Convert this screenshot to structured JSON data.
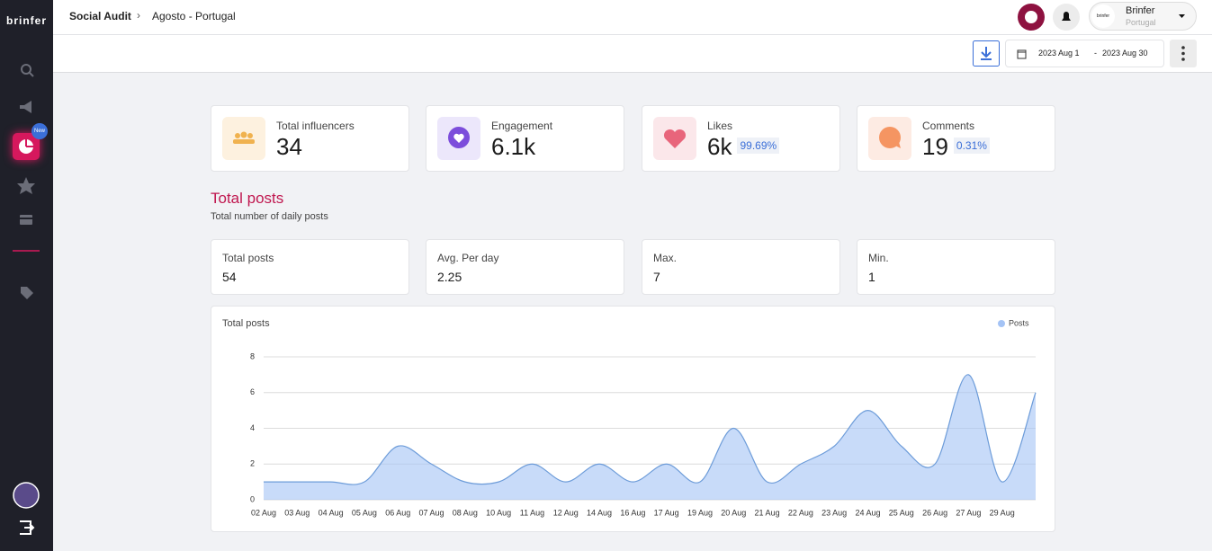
{
  "sidebar": {
    "logo": "brinfer",
    "badge": "New"
  },
  "header": {
    "breadcrumb": [
      "Social Audit",
      "Agosto - Portugal"
    ],
    "user_logo": "brinfer",
    "user_name": "Brinfer",
    "user_location": "Portugal",
    "date_from": "2023 Aug 1",
    "date_separator": "-",
    "date_to": "2023 Aug 30"
  },
  "kpis": [
    {
      "label": "Total influencers",
      "value": "34"
    },
    {
      "label": "Engagement",
      "value": "6.1k"
    },
    {
      "label": "Likes",
      "value": "6k",
      "share": "99.69%"
    },
    {
      "label": "Comments",
      "value": "19",
      "share": "0.31%"
    }
  ],
  "section": {
    "title": "Total posts",
    "subtitle": "Total number of daily posts"
  },
  "stats": [
    {
      "label": "Total posts",
      "value": "54"
    },
    {
      "label": "Avg. Per day",
      "value": "2.25"
    },
    {
      "label": "Max.",
      "value": "7"
    },
    {
      "label": "Min.",
      "value": "1"
    }
  ],
  "chart_data": {
    "type": "area",
    "title": "Total posts",
    "categories": [
      "02 Aug",
      "03 Aug",
      "04 Aug",
      "05 Aug",
      "06 Aug",
      "07 Aug",
      "08 Aug",
      "10 Aug",
      "11 Aug",
      "12 Aug",
      "14 Aug",
      "16 Aug",
      "17 Aug",
      "19 Aug",
      "20 Aug",
      "21 Aug",
      "22 Aug",
      "23 Aug",
      "24 Aug",
      "25 Aug",
      "26 Aug",
      "27 Aug",
      "29 Aug",
      null
    ],
    "series": [
      {
        "name": "Posts",
        "color": "#a4c3f5",
        "line_color": "#6d9cd9",
        "values": [
          1,
          1,
          1,
          1,
          3,
          2,
          1,
          1,
          2,
          1,
          2,
          1,
          2,
          1,
          4,
          1,
          2,
          3,
          5,
          3,
          2,
          7,
          1,
          6
        ]
      }
    ],
    "ylim": [
      0,
      8
    ],
    "yticks": [
      0,
      2,
      4,
      6,
      8
    ],
    "grid": true,
    "legend": "top-right"
  }
}
